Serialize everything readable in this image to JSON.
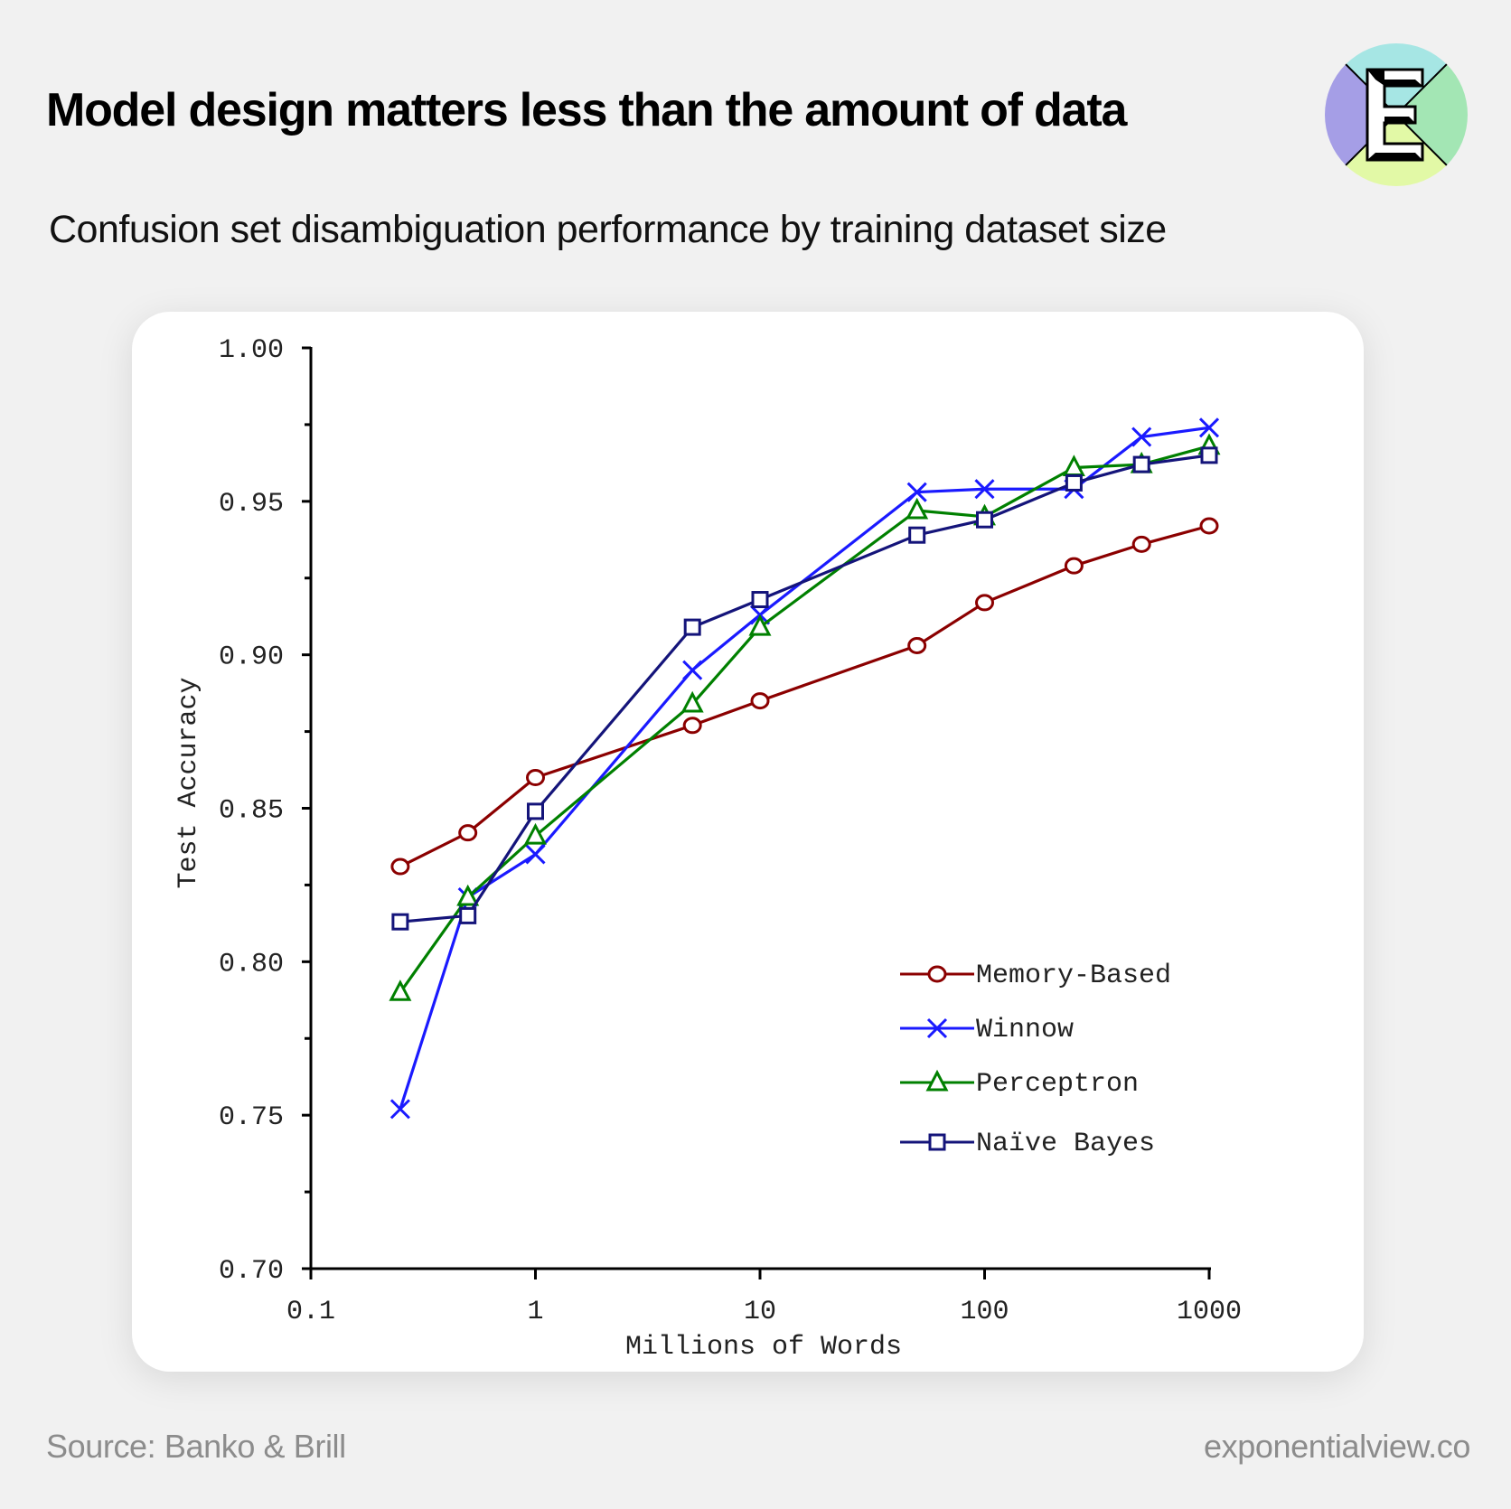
{
  "header": {
    "title": "Model design matters less than the amount of data",
    "subtitle": "Confusion set disambiguation performance by training dataset size"
  },
  "logo": {
    "letter": "E",
    "colors": {
      "left": "#a59ee6",
      "top": "#a6e6e4",
      "right": "#a3e6b4",
      "bottom": "#e2f9a6"
    }
  },
  "footer": {
    "source": "Source: Banko & Brill",
    "site": "exponentialview.co"
  },
  "chart_data": {
    "type": "line",
    "xlabel": "Millions of Words",
    "ylabel": "Test Accuracy",
    "xscale": "log",
    "xlim": [
      0.1,
      1000
    ],
    "ylim": [
      0.7,
      1.0
    ],
    "xticks": [
      0.1,
      1,
      10,
      100,
      1000
    ],
    "xtick_labels": [
      "0.1",
      "1",
      "10",
      "100",
      "1000"
    ],
    "yticks": [
      0.7,
      0.75,
      0.8,
      0.85,
      0.9,
      0.95,
      1.0
    ],
    "ytick_labels": [
      "0.70",
      "0.75",
      "0.80",
      "0.85",
      "0.90",
      "0.95",
      "1.00"
    ],
    "legend_position": "bottom-right",
    "x": [
      0.25,
      0.5,
      1,
      5,
      10,
      50,
      100,
      250,
      500,
      1000
    ],
    "series": [
      {
        "name": "Memory-Based",
        "color": "#8b0000",
        "marker": "circle",
        "values": [
          0.831,
          0.842,
          0.86,
          0.877,
          0.885,
          0.903,
          0.917,
          0.929,
          0.936,
          0.942
        ]
      },
      {
        "name": "Winnow",
        "color": "#1a1aff",
        "marker": "x",
        "values": [
          0.752,
          0.821,
          0.835,
          0.895,
          0.913,
          0.953,
          0.954,
          0.954,
          0.971,
          0.974
        ]
      },
      {
        "name": "Perceptron",
        "color": "#008000",
        "marker": "triangle",
        "values": [
          0.79,
          0.821,
          0.841,
          0.884,
          0.909,
          0.947,
          0.945,
          0.961,
          0.962,
          0.968
        ]
      },
      {
        "name": "Naïve Bayes",
        "color": "#14147a",
        "marker": "square",
        "values": [
          0.813,
          0.815,
          0.849,
          0.909,
          0.918,
          0.939,
          0.944,
          0.956,
          0.962,
          0.965
        ]
      }
    ]
  }
}
